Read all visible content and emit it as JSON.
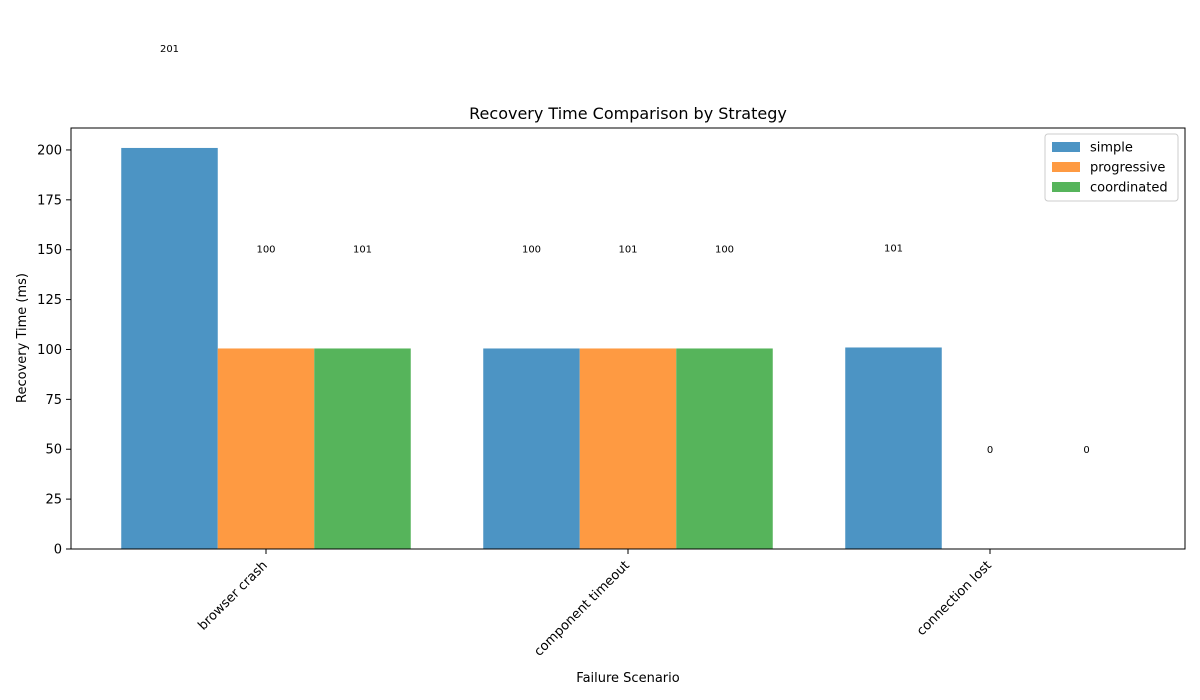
{
  "chart_data": {
    "type": "bar",
    "title": "Recovery Time Comparison by Strategy",
    "xlabel": "Failure Scenario",
    "ylabel": "Recovery Time (ms)",
    "categories": [
      "browser crash",
      "component timeout",
      "connection lost"
    ],
    "series": [
      {
        "name": "simple",
        "color": "#4c94c4",
        "values": [
          201,
          100.5,
          101
        ],
        "labels": [
          "201",
          "100",
          "101"
        ]
      },
      {
        "name": "progressive",
        "color": "#fe9a42",
        "values": [
          100.5,
          100.5,
          0
        ],
        "labels": [
          "100",
          "101",
          "0"
        ]
      },
      {
        "name": "coordinated",
        "color": "#56b45b",
        "values": [
          100.5,
          100.5,
          0
        ],
        "labels": [
          "101",
          "100",
          "0"
        ]
      }
    ],
    "ylim": [
      0,
      211
    ],
    "yticks": [
      0,
      25,
      50,
      75,
      100,
      125,
      150,
      175,
      200
    ],
    "grid": false,
    "legend_position": "top-right"
  }
}
